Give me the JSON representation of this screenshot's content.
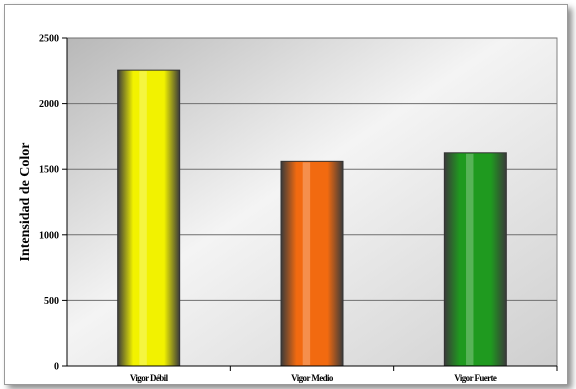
{
  "chart_data": {
    "type": "bar",
    "title": "",
    "xlabel": "",
    "ylabel": "Intensidad de Color",
    "categories": [
      "Vigor Débil",
      "Vigor Medio",
      "Vigor Fuerte"
    ],
    "values": [
      2255,
      1560,
      1625
    ],
    "ylim": [
      0,
      2500
    ],
    "yticks": [
      0,
      500,
      1000,
      1500,
      2000,
      2500
    ],
    "grid": true,
    "legend": "none",
    "colors": [
      "#f2f200",
      "#f26a10",
      "#1f9a1f"
    ]
  }
}
